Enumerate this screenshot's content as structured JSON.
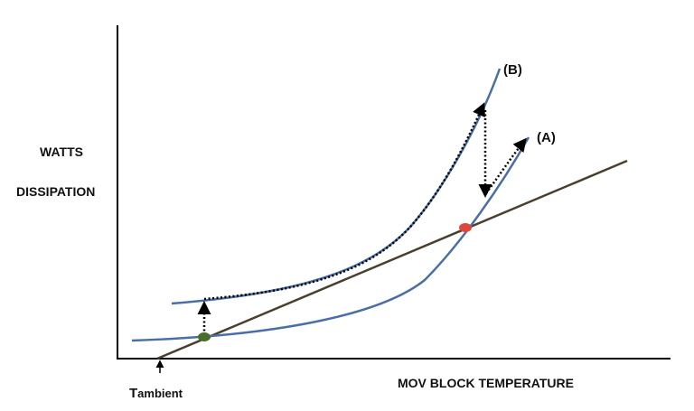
{
  "diagram": {
    "y_axis_label_line1": "WATTS",
    "y_axis_label_line2": "DISSIPATION",
    "x_axis_label": "MOV BLOCK TEMPERATURE",
    "ambient_label_main": "T",
    "ambient_label_sub": "ambient",
    "curve_a_label": "(A)",
    "curve_b_label": "(B)",
    "colors": {
      "curve": "#4a6fa5",
      "heat_loss_line": "#4a3f2e",
      "stable_point": "#4a6b2a",
      "unstable_point": "#e0473a",
      "axis": "#000000",
      "path": "#000000"
    }
  }
}
